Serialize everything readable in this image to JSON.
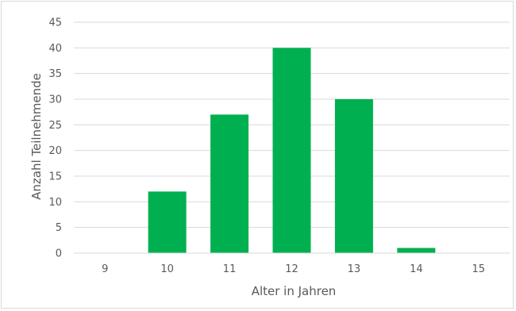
{
  "chart_data": {
    "type": "bar",
    "categories": [
      "9",
      "10",
      "11",
      "12",
      "13",
      "14",
      "15"
    ],
    "values": [
      0,
      12,
      27,
      40,
      30,
      1,
      0
    ],
    "title": "",
    "xlabel": "Alter in Jahren",
    "ylabel": "Anzahl Teilnehmende",
    "ylim": [
      0,
      45
    ],
    "yticks": [
      "0",
      "5",
      "10",
      "15",
      "20",
      "25",
      "30",
      "35",
      "40",
      "45"
    ],
    "grid": true,
    "legend": "none",
    "bar_color": "#00b050",
    "grid_color": "#d9d9d9"
  }
}
